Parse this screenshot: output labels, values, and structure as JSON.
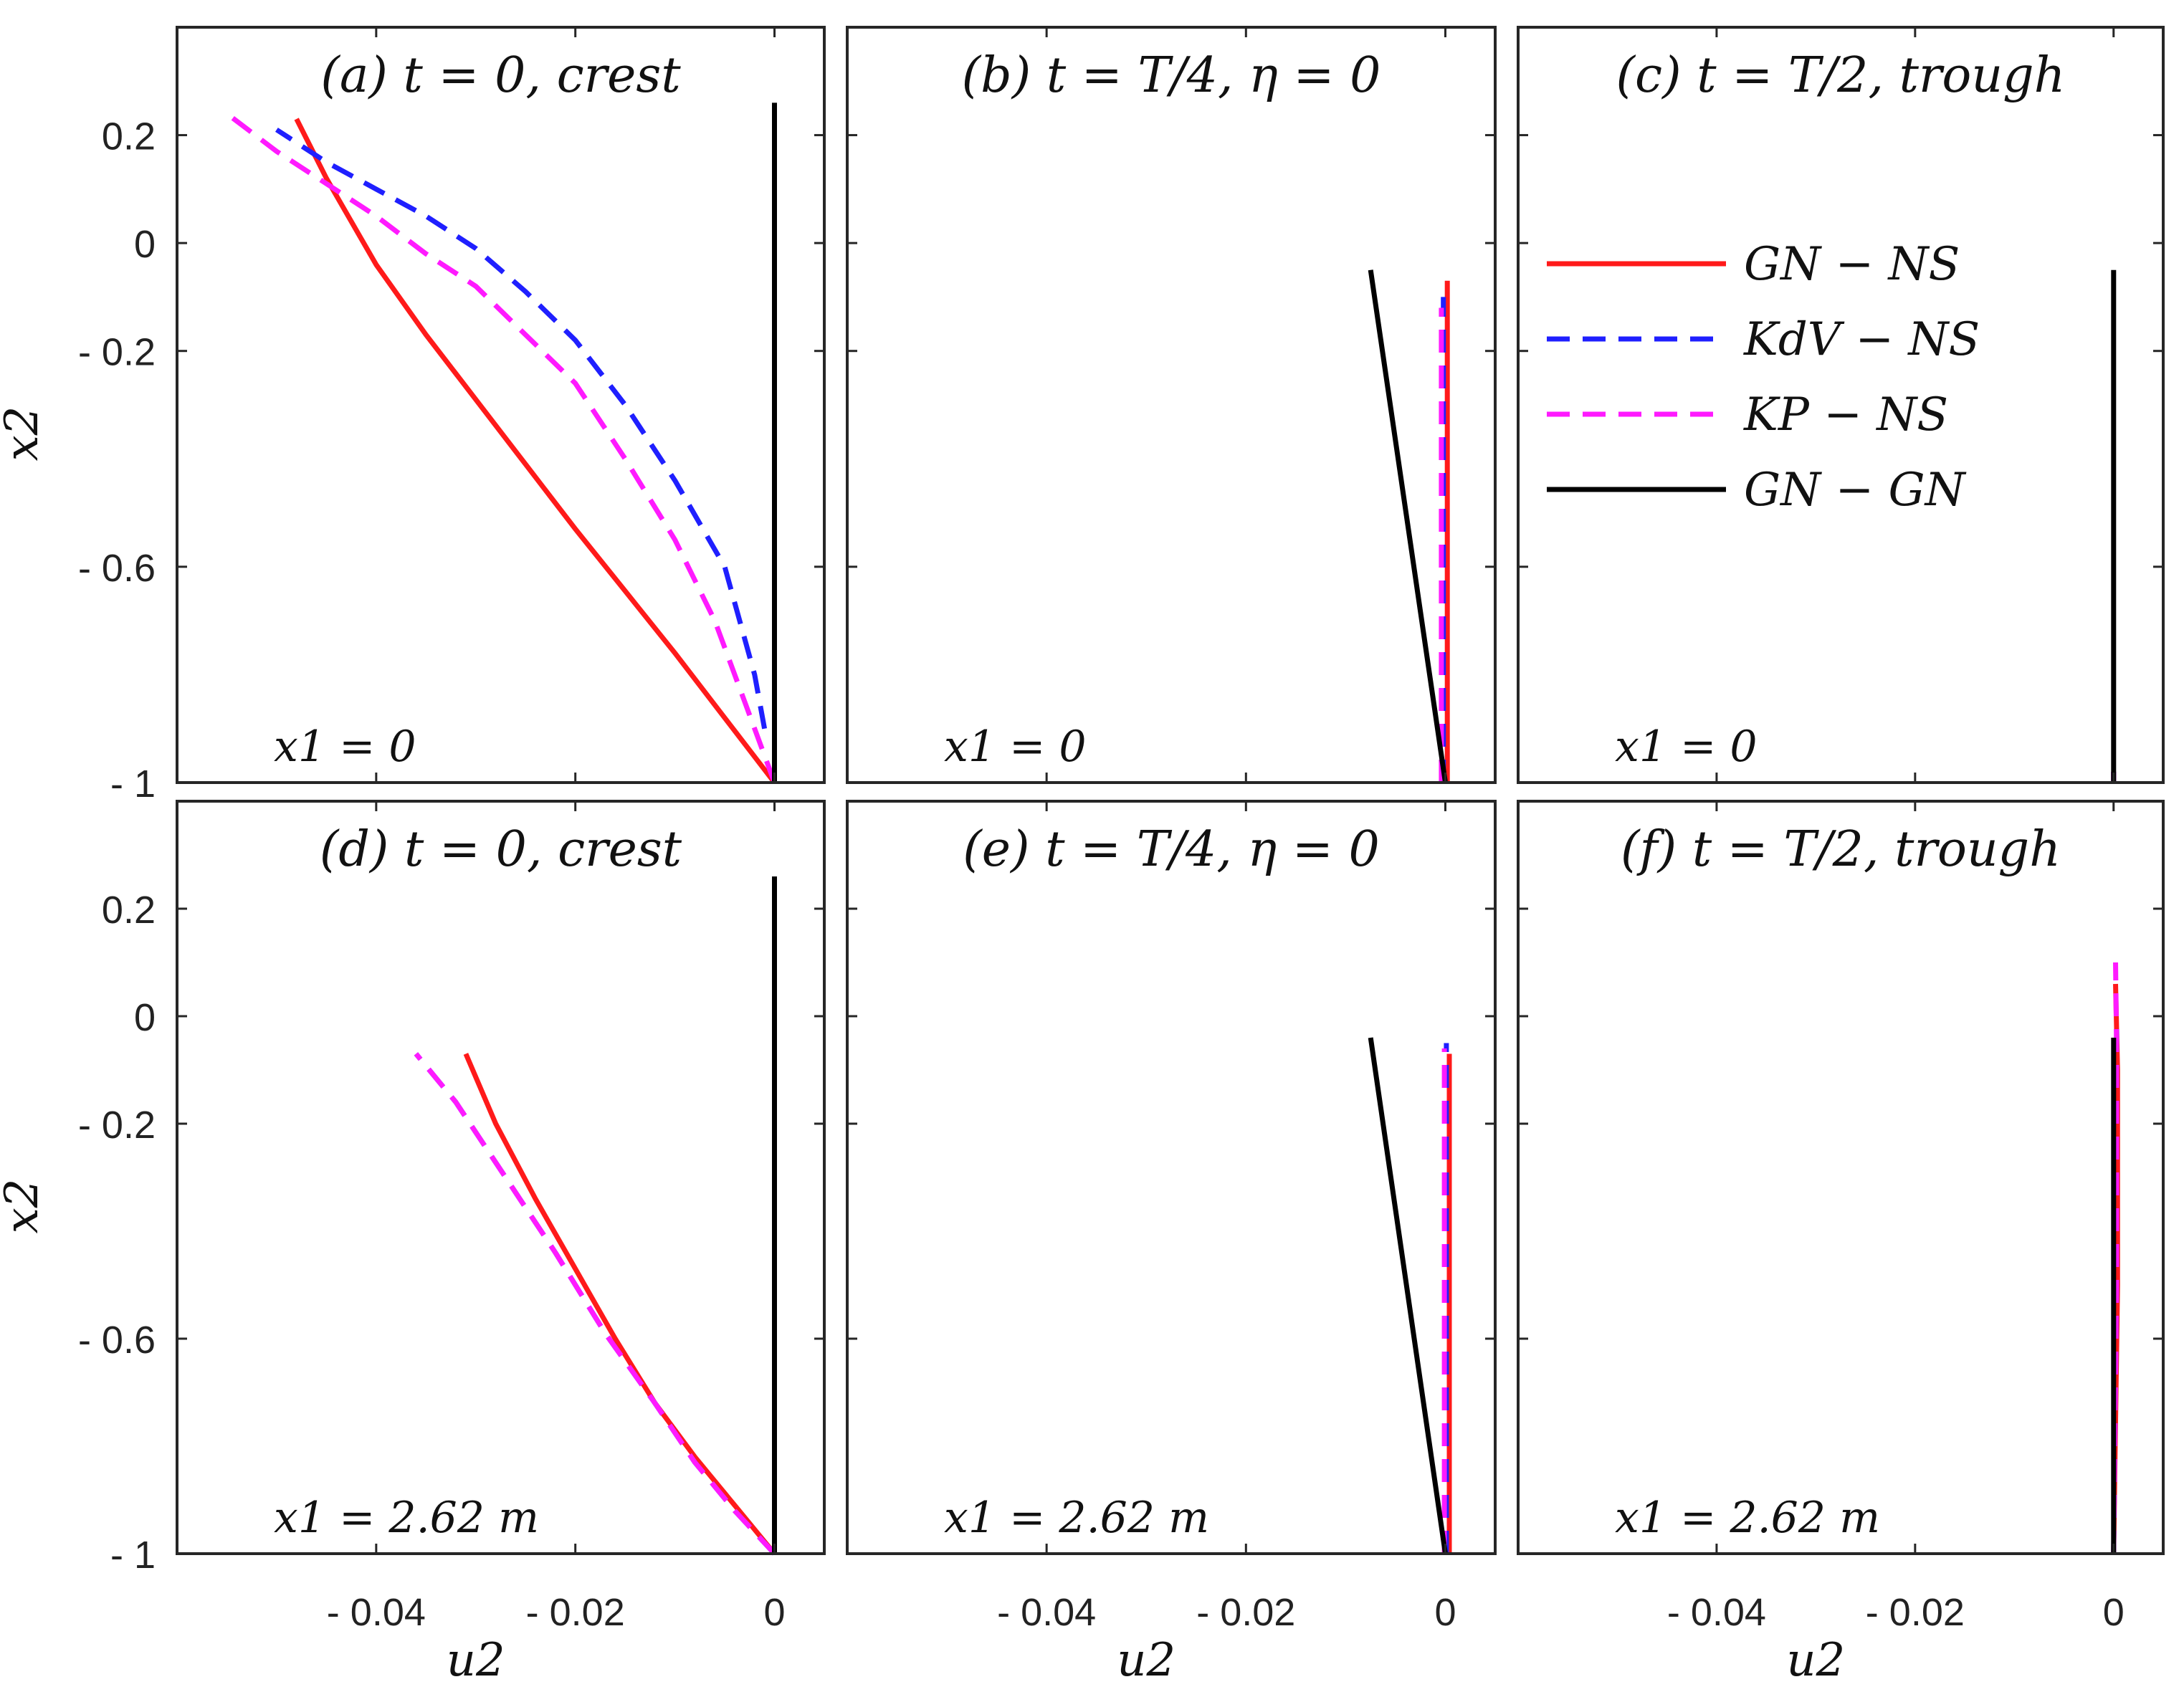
{
  "chart_data": {
    "type": "line",
    "layout": "2x3 grid of panels",
    "x_axis": {
      "label": "u2",
      "range": [
        -0.06,
        0.005
      ],
      "ticks": [
        {
          "value": -0.04,
          "label": "- 0.04"
        },
        {
          "value": -0.02,
          "label": "- 0.02"
        },
        {
          "value": 0,
          "label": "0"
        }
      ]
    },
    "y_axis": {
      "label": "x2",
      "range": [
        -1,
        0.4
      ],
      "ticks": [
        {
          "value": 0.2,
          "label": "0.2"
        },
        {
          "value": 0,
          "label": "0"
        },
        {
          "value": -0.2,
          "label": "- 0.2"
        },
        {
          "value": -0.6,
          "label": "- 0.6"
        },
        {
          "value": -1,
          "label": "- 1"
        }
      ]
    },
    "legend": {
      "placement": "inside panel (c), top",
      "entries": [
        {
          "name": "GN − NS",
          "color": "#ff1a1a",
          "dash": "solid"
        },
        {
          "name": "KdV − NS",
          "color": "#1f1fff",
          "dash": "dashed"
        },
        {
          "name": "KP − NS",
          "color": "#ff1aff",
          "dash": "dashed"
        },
        {
          "name": "GN − GN",
          "color": "#000000",
          "dash": "solid"
        }
      ]
    },
    "panels": [
      {
        "id": "a",
        "title": "(a) t = 0,  crest",
        "note": "x1 = 0",
        "series": [
          {
            "name": "GN − NS",
            "x": [
              0.0,
              -0.005,
              -0.01,
              -0.015,
              -0.02,
              -0.025,
              -0.03,
              -0.035,
              -0.04,
              -0.045,
              -0.048
            ],
            "y": [
              -1.0,
              -0.88,
              -0.76,
              -0.645,
              -0.53,
              -0.41,
              -0.29,
              -0.17,
              -0.04,
              0.12,
              0.23
            ]
          },
          {
            "name": "KdV − NS",
            "x": [
              -0.001,
              -0.002,
              -0.005,
              -0.01,
              -0.015,
              -0.02,
              -0.025,
              -0.03,
              -0.035,
              -0.04,
              -0.045,
              -0.05
            ],
            "y": [
              -0.9,
              -0.8,
              -0.6,
              -0.44,
              -0.3,
              -0.18,
              -0.09,
              -0.01,
              0.05,
              0.1,
              0.15,
              0.21
            ]
          },
          {
            "name": "KP − NS",
            "x": [
              0.0,
              -0.003,
              -0.006,
              -0.01,
              -0.015,
              -0.02,
              -0.025,
              -0.03,
              -0.035,
              -0.04,
              -0.045,
              -0.05,
              -0.055
            ],
            "y": [
              -1.0,
              -0.85,
              -0.7,
              -0.55,
              -0.4,
              -0.26,
              -0.17,
              -0.08,
              -0.02,
              0.05,
              0.11,
              0.17,
              0.24
            ]
          },
          {
            "name": "GN − GN",
            "x": [
              0.0,
              0.0
            ],
            "y": [
              -1.0,
              0.26
            ]
          }
        ]
      },
      {
        "id": "b",
        "title": "(b) t = T/4,  η = 0",
        "note": "x1 = 0",
        "series": [
          {
            "name": "GN − NS",
            "x": [
              0.0002,
              0.0002
            ],
            "y": [
              -1.0,
              -0.07
            ]
          },
          {
            "name": "KdV − NS",
            "x": [
              -0.0002,
              -0.0002
            ],
            "y": [
              -1.0,
              -0.1
            ]
          },
          {
            "name": "KP − NS",
            "x": [
              -0.0004,
              -0.0004
            ],
            "y": [
              -1.0,
              -0.12
            ]
          },
          {
            "name": "GN − GN",
            "x": [
              0.0,
              -0.0075
            ],
            "y": [
              -1.0,
              -0.05
            ]
          }
        ]
      },
      {
        "id": "c",
        "title": "(c) t = T/2,  trough",
        "note": "x1 = 0",
        "series": [
          {
            "name": "GN − NS",
            "x": [
              0.0,
              0.0
            ],
            "y": [
              -1.0,
              -0.98
            ]
          },
          {
            "name": "KdV − NS",
            "x": [
              0.0,
              0.0
            ],
            "y": [
              -1.0,
              -0.98
            ]
          },
          {
            "name": "KP − NS",
            "x": [
              0.0,
              0.0
            ],
            "y": [
              -1.0,
              -0.98
            ]
          },
          {
            "name": "GN − GN",
            "x": [
              0.0,
              0.0
            ],
            "y": [
              -1.0,
              -0.05
            ]
          }
        ]
      },
      {
        "id": "d",
        "title": "(d) t = 0,  crest",
        "note": "x1 = 2.62 m",
        "series": [
          {
            "name": "GN − NS",
            "x": [
              0.0,
              -0.004,
              -0.008,
              -0.012,
              -0.016,
              -0.02,
              -0.024,
              -0.028,
              -0.031
            ],
            "y": [
              -1.0,
              -0.91,
              -0.82,
              -0.72,
              -0.6,
              -0.47,
              -0.34,
              -0.2,
              -0.07
            ]
          },
          {
            "name": "KdV − NS",
            "x": [
              0.0,
              -0.004,
              -0.008,
              -0.012,
              -0.017,
              -0.022,
              -0.027,
              -0.032,
              -0.036
            ],
            "y": [
              -1.0,
              -0.92,
              -0.83,
              -0.72,
              -0.59,
              -0.44,
              -0.3,
              -0.16,
              -0.07
            ]
          },
          {
            "name": "KP − NS",
            "x": [
              0.0,
              -0.004,
              -0.008,
              -0.012,
              -0.017,
              -0.022,
              -0.027,
              -0.032,
              -0.036
            ],
            "y": [
              -1.0,
              -0.92,
              -0.83,
              -0.72,
              -0.59,
              -0.44,
              -0.3,
              -0.16,
              -0.07
            ]
          },
          {
            "name": "GN − GN",
            "x": [
              0.0,
              0.0
            ],
            "y": [
              -1.0,
              0.26
            ]
          }
        ]
      },
      {
        "id": "e",
        "title": "(e) t = T/4,  η = 0",
        "note": "x1 = 2.62 m",
        "series": [
          {
            "name": "GN − NS",
            "x": [
              0.0004,
              0.0004
            ],
            "y": [
              -1.0,
              -0.07
            ]
          },
          {
            "name": "KdV − NS",
            "x": [
              0.0001,
              0.0001
            ],
            "y": [
              -1.0,
              -0.05
            ]
          },
          {
            "name": "KP − NS",
            "x": [
              -0.0001,
              -0.0001
            ],
            "y": [
              -1.0,
              -0.06
            ]
          },
          {
            "name": "GN − GN",
            "x": [
              0.0,
              -0.0075
            ],
            "y": [
              -1.0,
              -0.04
            ]
          }
        ]
      },
      {
        "id": "f",
        "title": "(f) t = T/2,  trough",
        "note": "x1 = 2.62 m",
        "series": [
          {
            "name": "GN − NS",
            "x": [
              0.0,
              0.0004,
              0.0004,
              0.0002
            ],
            "y": [
              -1.0,
              -0.5,
              -0.1,
              0.06
            ]
          },
          {
            "name": "KdV − NS",
            "x": [
              0.0,
              0.0003,
              0.0003
            ],
            "y": [
              -1.0,
              -0.5,
              0.0
            ]
          },
          {
            "name": "KP − NS",
            "x": [
              0.0,
              0.0003,
              0.0003,
              0.0002
            ],
            "y": [
              -1.0,
              -0.5,
              -0.05,
              0.1
            ]
          },
          {
            "name": "GN − GN",
            "x": [
              0.0,
              0.0
            ],
            "y": [
              -1.0,
              -0.04
            ]
          }
        ]
      }
    ]
  }
}
